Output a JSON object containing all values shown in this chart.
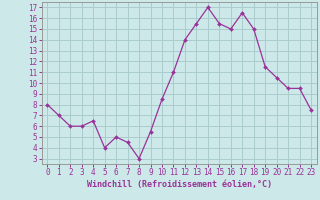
{
  "x": [
    0,
    1,
    2,
    3,
    4,
    5,
    6,
    7,
    8,
    9,
    10,
    11,
    12,
    13,
    14,
    15,
    16,
    17,
    18,
    19,
    20,
    21,
    22,
    23
  ],
  "y": [
    8.0,
    7.0,
    6.0,
    6.0,
    6.5,
    4.0,
    5.0,
    4.5,
    3.0,
    5.5,
    8.5,
    11.0,
    14.0,
    15.5,
    17.0,
    15.5,
    15.0,
    16.5,
    15.0,
    11.5,
    10.5,
    9.5,
    9.5,
    7.5
  ],
  "line_color": "#993399",
  "marker": "D",
  "marker_size": 2.0,
  "bg_color": "#cce8e8",
  "grid_color": "#aacccc",
  "xlabel": "Windchill (Refroidissement éolien,°C)",
  "ylabel_ticks": [
    3,
    4,
    5,
    6,
    7,
    8,
    9,
    10,
    11,
    12,
    13,
    14,
    15,
    16,
    17
  ],
  "xlim": [
    -0.5,
    23.5
  ],
  "ylim": [
    2.5,
    17.5
  ],
  "xticks": [
    0,
    1,
    2,
    3,
    4,
    5,
    6,
    7,
    8,
    9,
    10,
    11,
    12,
    13,
    14,
    15,
    16,
    17,
    18,
    19,
    20,
    21,
    22,
    23
  ],
  "axis_label_color": "#993399",
  "tick_label_color": "#993399",
  "spine_color": "#999999",
  "xlabel_fontsize": 6.0,
  "tick_fontsize": 5.5
}
